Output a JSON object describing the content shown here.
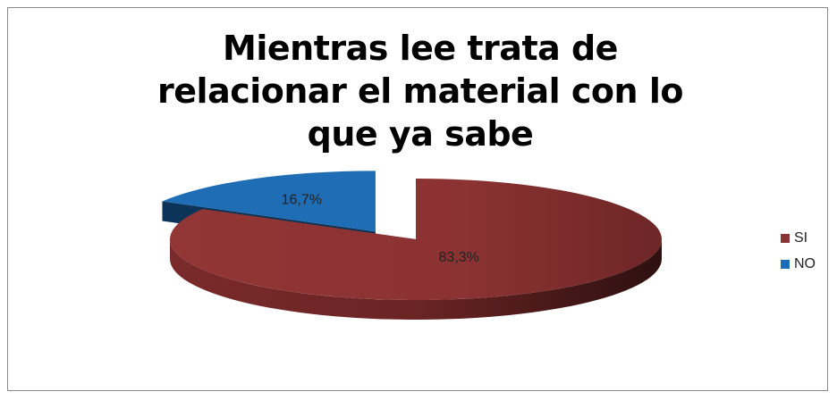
{
  "chart_data": {
    "type": "pie",
    "title": "Mientras lee trata de relacionar el material con lo que ya sabe",
    "categories": [
      "SI",
      "NO"
    ],
    "values": [
      83.3,
      16.7
    ],
    "value_labels": [
      "83,3%",
      "16,7%"
    ],
    "colors": [
      "#8b3232",
      "#1f6db5"
    ],
    "legend": "right"
  }
}
